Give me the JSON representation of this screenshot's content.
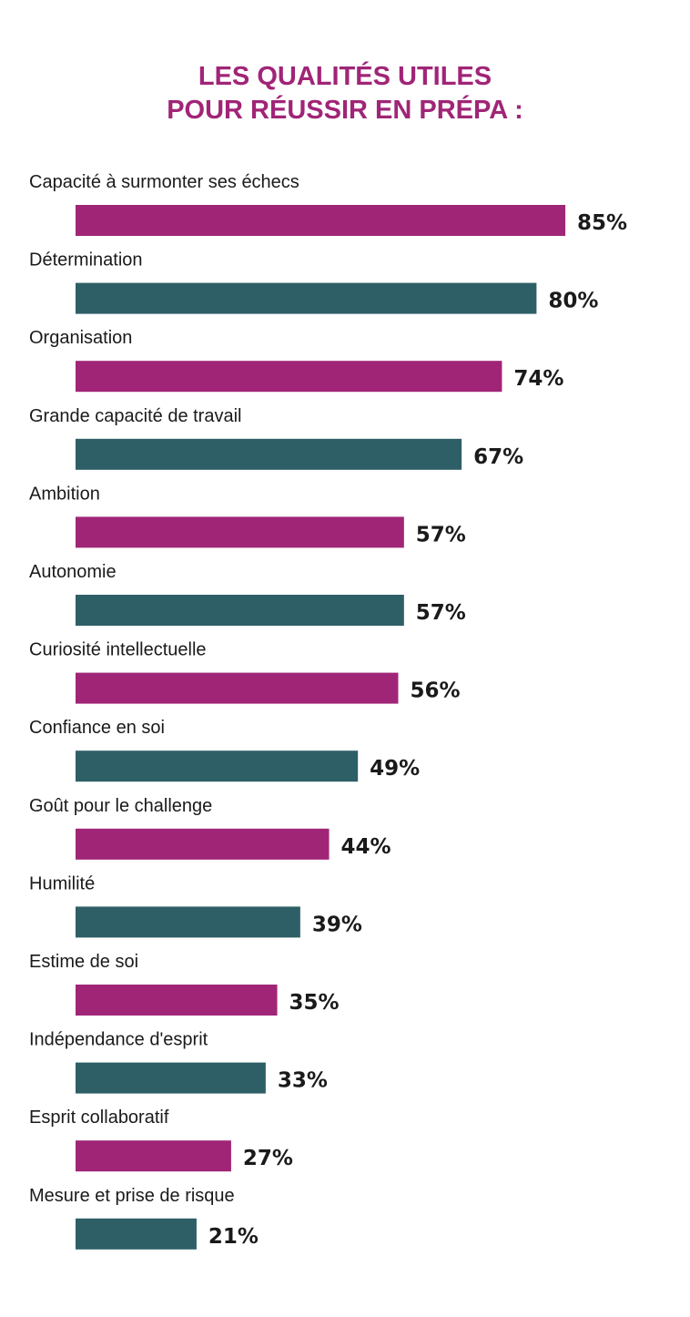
{
  "chart_data": {
    "type": "bar",
    "orientation": "horizontal",
    "title_lines": [
      "LES QUALITÉS UTILES",
      "POUR RÉUSSIR EN PRÉPA :"
    ],
    "categories": [
      "Capacité à surmonter ses échecs",
      "Détermination",
      "Organisation",
      "Grande capacité de travail",
      "Ambition",
      "Autonomie",
      "Curiosité intellectuelle",
      "Confiance en soi",
      "Goût pour le challenge",
      "Humilité",
      "Estime de soi",
      "Indépendance d'esprit",
      "Esprit collaboratif",
      "Mesure et prise de risque"
    ],
    "values": [
      85,
      80,
      74,
      67,
      57,
      57,
      56,
      49,
      44,
      39,
      35,
      33,
      27,
      21
    ],
    "value_labels": [
      "85%",
      "80%",
      "74%",
      "67%",
      "57%",
      "57%",
      "56%",
      "49%",
      "44%",
      "39%",
      "35%",
      "33%",
      "27%",
      "21%"
    ],
    "unit": "%",
    "xlim": [
      0,
      100
    ],
    "grid": false,
    "legend": "none",
    "colors": [
      "#a02577",
      "#2e5f66"
    ]
  }
}
